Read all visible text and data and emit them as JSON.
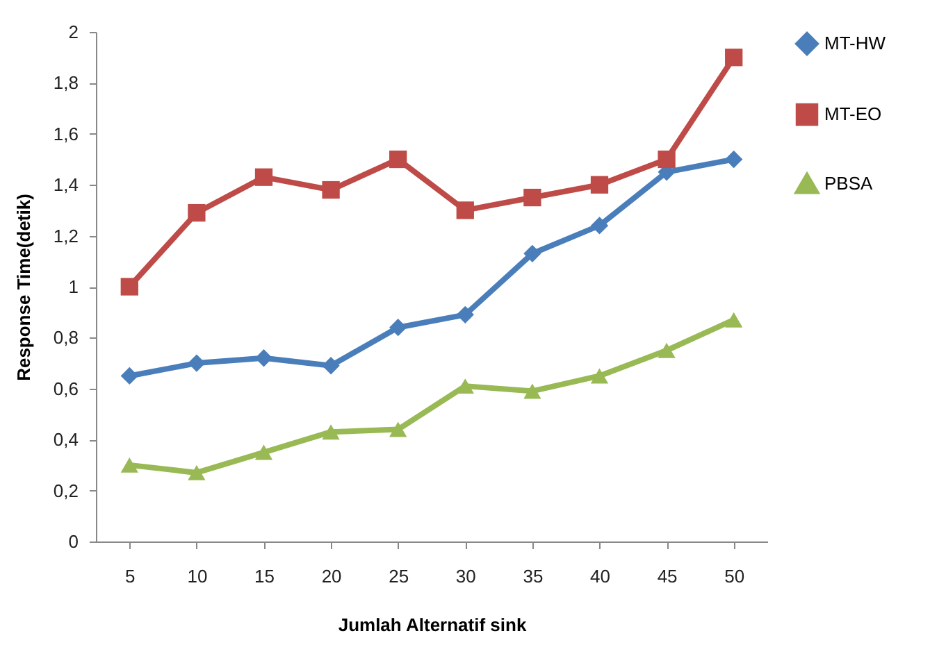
{
  "chart_data": {
    "type": "line",
    "xlabel": "Jumlah Alternatif sink",
    "ylabel": "Response Time(detik)",
    "categories": [
      "5",
      "10",
      "15",
      "20",
      "25",
      "30",
      "35",
      "40",
      "45",
      "50"
    ],
    "ylim": [
      0,
      2
    ],
    "yticks": [
      0,
      {
        "value": 0.2,
        "label": "0,2"
      },
      {
        "value": 0.4,
        "label": "0,4"
      },
      {
        "value": 0.6,
        "label": "0,6"
      },
      {
        "value": 0.8,
        "label": "0,8"
      },
      1,
      {
        "value": 1.2,
        "label": "1,2"
      },
      {
        "value": 1.4,
        "label": "1,4"
      },
      {
        "value": 1.6,
        "label": "1,6"
      },
      {
        "value": 1.8,
        "label": "1,8"
      },
      2
    ],
    "grid": false,
    "legend": "right",
    "series": [
      {
        "name": "MT-HW",
        "color": "#4a7ebb",
        "marker": "diamond",
        "values": [
          0.65,
          0.7,
          0.72,
          0.69,
          0.84,
          0.89,
          1.13,
          1.24,
          1.45,
          1.5
        ]
      },
      {
        "name": "MT-EO",
        "color": "#be4b48",
        "marker": "square",
        "values": [
          1.0,
          1.29,
          1.43,
          1.38,
          1.5,
          1.3,
          1.35,
          1.4,
          1.5,
          1.9
        ]
      },
      {
        "name": "PBSA",
        "color": "#98b954",
        "marker": "triangle",
        "values": [
          0.3,
          0.27,
          0.35,
          0.43,
          0.44,
          0.61,
          0.59,
          0.65,
          0.75,
          0.87
        ]
      }
    ]
  }
}
